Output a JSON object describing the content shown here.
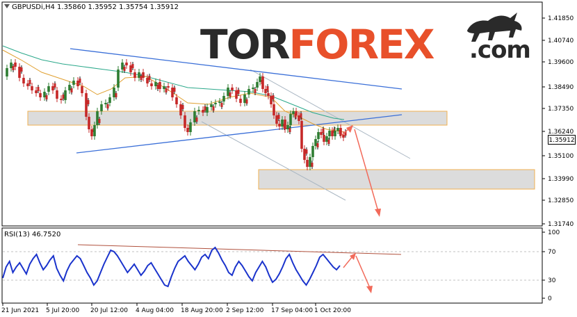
{
  "symbol_info": "GBPUSDi,H4  1.35860 1.35952 1.35754 1.35912",
  "rsi_info": "RSI(13) 46.7520",
  "logo": {
    "tor": "TOR",
    "forex": "FOREX",
    "com": ".com"
  },
  "current_price": "1.35912",
  "price_axis": [
    "1.41850",
    "1.40740",
    "1.39600",
    "1.38490",
    "1.37350",
    "1.36240",
    "1.35100",
    "1.33990",
    "1.32850",
    "1.31740"
  ],
  "rsi_axis": [
    "100",
    "70",
    "30",
    "0"
  ],
  "time_axis": [
    "21 Jun 2021",
    "5 Jul 20:00",
    "20 Jul 12:00",
    "4 Aug 04:00",
    "18 Aug 20:00",
    "2 Sep 12:00",
    "17 Sep 04:00",
    "1 Oct 20:00"
  ],
  "colors": {
    "bull": "#2e7d32",
    "bear": "#c62828",
    "trendline": "#3a6fd8",
    "channel": "#a9b6c2",
    "zone_fill": "#dcdcdc",
    "zone_border": "#f0b050",
    "arrow": "#f26a5a",
    "rsi_line": "#1a33cc",
    "rsi_trend": "#b0503c",
    "ma_fast": "#e0a030",
    "ma_slow": "#2aa88a"
  },
  "icons": [
    "bull-icon",
    "dropdown-triangle-icon"
  ]
}
